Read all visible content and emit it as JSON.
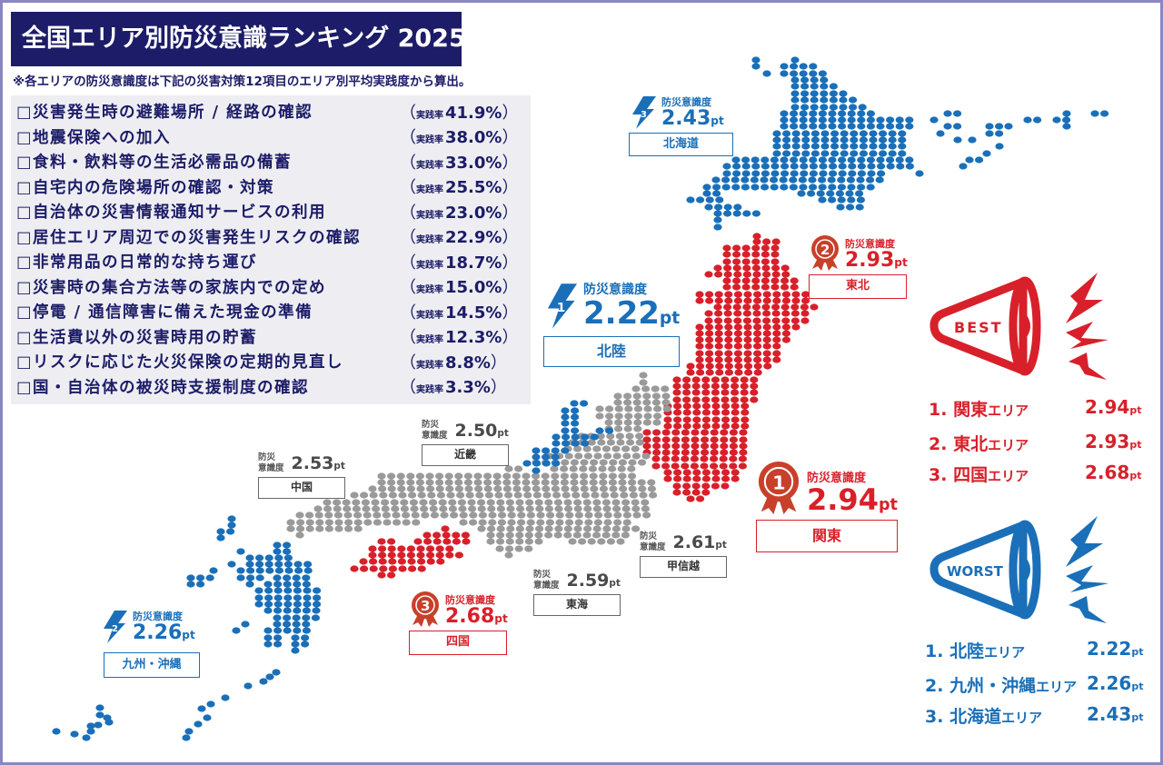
{
  "title": "全国エリア別防災意識ランキング 2025",
  "note": "※各エリアの防災意識度は下記の災害対策12項目のエリア別平均実践度から算出。",
  "checklist": {
    "rate_prefix": "実践率",
    "items": [
      {
        "label": "□災害発生時の避難場所 / 経路の確認",
        "rate": "41.9%"
      },
      {
        "label": "□地震保険への加入",
        "rate": "38.0%"
      },
      {
        "label": "□食料・飲料等の生活必需品の備蓄",
        "rate": "33.0%"
      },
      {
        "label": "□自宅内の危険場所の確認・対策",
        "rate": "25.5%"
      },
      {
        "label": "□自治体の災害情報通知サービスの利用",
        "rate": "23.0%"
      },
      {
        "label": "□居住エリア周辺での災害発生リスクの確認",
        "rate": "22.9%"
      },
      {
        "label": "□非常用品の日常的な持ち運び",
        "rate": "18.7%"
      },
      {
        "label": "□災害時の集合方法等の家族内での定め",
        "rate": "15.0%"
      },
      {
        "label": "□停電 / 通信障害に備えた現金の準備",
        "rate": "14.5%"
      },
      {
        "label": "□生活費以外の災害時用の貯蓄",
        "rate": "12.3%"
      },
      {
        "label": "□リスクに応じた火災保険の定期的見直し",
        "rate": "8.8%"
      },
      {
        "label": "□国・自治体の被災時支援制度の確認",
        "rate": "3.3%"
      }
    ]
  },
  "labels": {
    "awareness": "防災意識度",
    "awareness_l1": "防災",
    "awareness_l2": "意識度",
    "pt": "pt"
  },
  "regions": {
    "hokkaido": {
      "name": "北海道",
      "value": "2.43",
      "rank": "3",
      "kind": "worst"
    },
    "tohoku": {
      "name": "東北",
      "value": "2.93",
      "rank": "2",
      "kind": "best"
    },
    "hokuriku": {
      "name": "北陸",
      "value": "2.22",
      "rank": "1",
      "kind": "worst"
    },
    "kanto": {
      "name": "関東",
      "value": "2.94",
      "rank": "1",
      "kind": "best"
    },
    "koshinetsu": {
      "name": "甲信越",
      "value": "2.61"
    },
    "tokai": {
      "name": "東海",
      "value": "2.59"
    },
    "kinki": {
      "name": "近畿",
      "value": "2.50"
    },
    "chugoku": {
      "name": "中国",
      "value": "2.53"
    },
    "shikoku": {
      "name": "四国",
      "value": "2.68",
      "rank": "3",
      "kind": "best"
    },
    "kyushu": {
      "name": "九州・沖縄",
      "value": "2.26",
      "rank": "2",
      "kind": "worst"
    }
  },
  "best": {
    "badge": "BEST",
    "items": [
      {
        "rank": "1.",
        "name": "関東",
        "suffix": "エリア",
        "value": "2.94"
      },
      {
        "rank": "2.",
        "name": "東北",
        "suffix": "エリア",
        "value": "2.93"
      },
      {
        "rank": "3.",
        "name": "四国",
        "suffix": "エリア",
        "value": "2.68"
      }
    ]
  },
  "worst": {
    "badge": "WORST",
    "items": [
      {
        "rank": "1.",
        "name": "北陸",
        "suffix": "エリア",
        "value": "2.22"
      },
      {
        "rank": "2.",
        "name": "九州・沖縄",
        "suffix": "エリア",
        "value": "2.26"
      },
      {
        "rank": "3.",
        "name": "北海道",
        "suffix": "エリア",
        "value": "2.43"
      }
    ]
  },
  "colors": {
    "navy": "#1c1c68",
    "best_red": "#d8202a",
    "worst_blue": "#1a6fb8",
    "neutral_gray": "#9a9a9a",
    "medal": "#c8402a"
  },
  "chart_data": {
    "type": "bar",
    "title": "全国エリア別防災意識ランキング 2025",
    "categories": [
      "北海道",
      "東北",
      "北陸",
      "関東",
      "甲信越",
      "東海",
      "近畿",
      "中国",
      "四国",
      "九州・沖縄"
    ],
    "values": [
      2.43,
      2.93,
      2.22,
      2.94,
      2.61,
      2.59,
      2.5,
      2.53,
      2.68,
      2.26
    ],
    "unit": "pt",
    "ylabel": "防災意識度",
    "best3": [
      "関東",
      "東北",
      "四国"
    ],
    "worst3": [
      "北陸",
      "九州・沖縄",
      "北海道"
    ],
    "checklist_practice_rates": {
      "categories": [
        "災害発生時の避難場所 / 経路の確認",
        "地震保険への加入",
        "食料・飲料等の生活必需品の備蓄",
        "自宅内の危険場所の確認・対策",
        "自治体の災害情報通知サービスの利用",
        "居住エリア周辺での災害発生リスクの確認",
        "非常用品の日常的な持ち運び",
        "災害時の集合方法等の家族内での定め",
        "停電 / 通信障害に備えた現金の準備",
        "生活費以外の災害時用の貯蓄",
        "リスクに応じた火災保険の定期的見直し",
        "国・自治体の被災時支援制度の確認"
      ],
      "values": [
        41.9,
        38.0,
        33.0,
        25.5,
        23.0,
        22.9,
        18.7,
        15.0,
        14.5,
        12.3,
        8.8,
        3.3
      ],
      "unit": "%"
    }
  }
}
